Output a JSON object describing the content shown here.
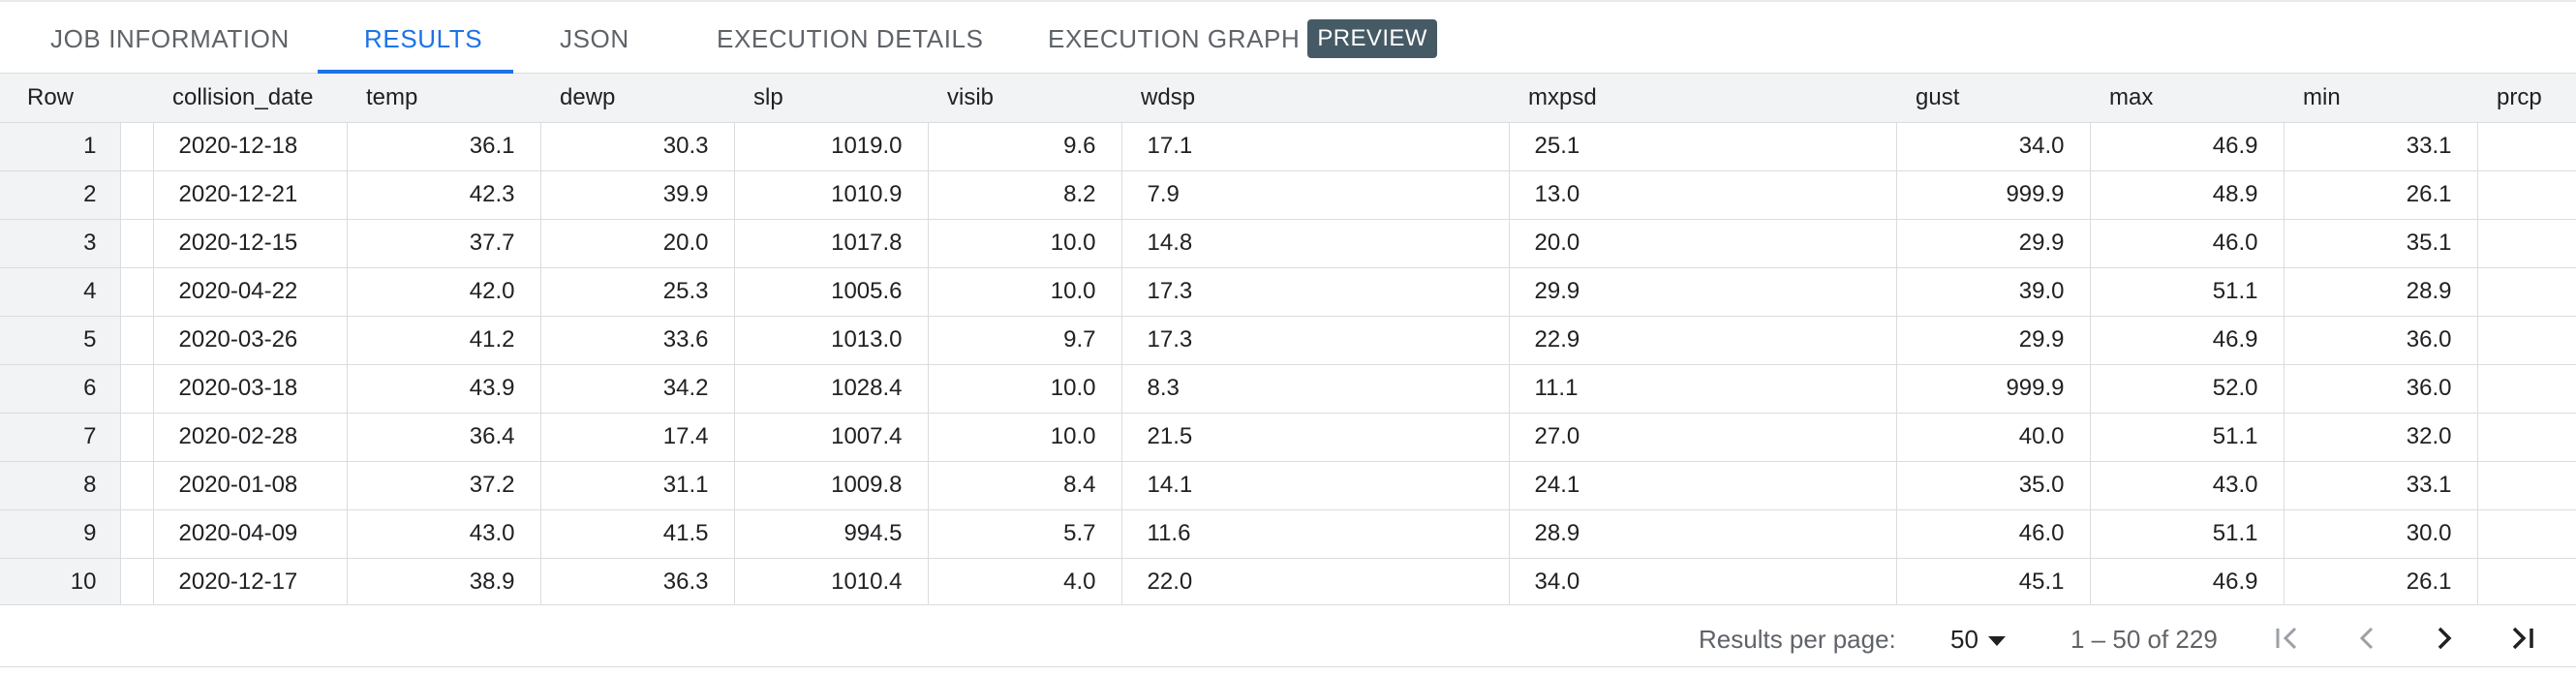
{
  "tabs": {
    "job_information": "JOB INFORMATION",
    "results": "RESULTS",
    "json": "JSON",
    "execution_details": "EXECUTION DETAILS",
    "execution_graph": "EXECUTION GRAPH",
    "preview_badge": "PREVIEW"
  },
  "table": {
    "headers": {
      "row": "Row",
      "collision_date": "collision_date",
      "temp": "temp",
      "dewp": "dewp",
      "slp": "slp",
      "visib": "visib",
      "wdsp": "wdsp",
      "mxpsd": "mxpsd",
      "gust": "gust",
      "max": "max",
      "min": "min",
      "prcp": "prcp"
    },
    "rows": [
      {
        "row": "1",
        "collision_date": "2020-12-18",
        "temp": "36.1",
        "dewp": "30.3",
        "slp": "1019.0",
        "visib": "9.6",
        "wdsp": "17.1",
        "mxpsd": "25.1",
        "gust": "34.0",
        "max": "46.9",
        "min": "33.1"
      },
      {
        "row": "2",
        "collision_date": "2020-12-21",
        "temp": "42.3",
        "dewp": "39.9",
        "slp": "1010.9",
        "visib": "8.2",
        "wdsp": "7.9",
        "mxpsd": "13.0",
        "gust": "999.9",
        "max": "48.9",
        "min": "26.1"
      },
      {
        "row": "3",
        "collision_date": "2020-12-15",
        "temp": "37.7",
        "dewp": "20.0",
        "slp": "1017.8",
        "visib": "10.0",
        "wdsp": "14.8",
        "mxpsd": "20.0",
        "gust": "29.9",
        "max": "46.0",
        "min": "35.1"
      },
      {
        "row": "4",
        "collision_date": "2020-04-22",
        "temp": "42.0",
        "dewp": "25.3",
        "slp": "1005.6",
        "visib": "10.0",
        "wdsp": "17.3",
        "mxpsd": "29.9",
        "gust": "39.0",
        "max": "51.1",
        "min": "28.9"
      },
      {
        "row": "5",
        "collision_date": "2020-03-26",
        "temp": "41.2",
        "dewp": "33.6",
        "slp": "1013.0",
        "visib": "9.7",
        "wdsp": "17.3",
        "mxpsd": "22.9",
        "gust": "29.9",
        "max": "46.9",
        "min": "36.0"
      },
      {
        "row": "6",
        "collision_date": "2020-03-18",
        "temp": "43.9",
        "dewp": "34.2",
        "slp": "1028.4",
        "visib": "10.0",
        "wdsp": "8.3",
        "mxpsd": "11.1",
        "gust": "999.9",
        "max": "52.0",
        "min": "36.0"
      },
      {
        "row": "7",
        "collision_date": "2020-02-28",
        "temp": "36.4",
        "dewp": "17.4",
        "slp": "1007.4",
        "visib": "10.0",
        "wdsp": "21.5",
        "mxpsd": "27.0",
        "gust": "40.0",
        "max": "51.1",
        "min": "32.0"
      },
      {
        "row": "8",
        "collision_date": "2020-01-08",
        "temp": "37.2",
        "dewp": "31.1",
        "slp": "1009.8",
        "visib": "8.4",
        "wdsp": "14.1",
        "mxpsd": "24.1",
        "gust": "35.0",
        "max": "43.0",
        "min": "33.1"
      },
      {
        "row": "9",
        "collision_date": "2020-04-09",
        "temp": "43.0",
        "dewp": "41.5",
        "slp": "994.5",
        "visib": "5.7",
        "wdsp": "11.6",
        "mxpsd": "28.9",
        "gust": "46.0",
        "max": "51.1",
        "min": "30.0"
      },
      {
        "row": "10",
        "collision_date": "2020-12-17",
        "temp": "38.9",
        "dewp": "36.3",
        "slp": "1010.4",
        "visib": "4.0",
        "wdsp": "22.0",
        "mxpsd": "34.0",
        "gust": "45.1",
        "max": "46.9",
        "min": "26.1"
      }
    ]
  },
  "footer": {
    "results_per_page_label": "Results per page:",
    "results_per_page_value": "50",
    "range_text": "1 – 50 of 229"
  },
  "icons": {
    "first_page": "first-page-icon",
    "previous_page": "chevron-left-icon",
    "next_page": "chevron-right-icon",
    "last_page": "last-page-icon",
    "dropdown": "caret-down-icon"
  },
  "colors": {
    "accent": "#1a73e8",
    "badge": "#455a64",
    "header_bg": "#f1f3f4",
    "border": "#dadce0"
  }
}
